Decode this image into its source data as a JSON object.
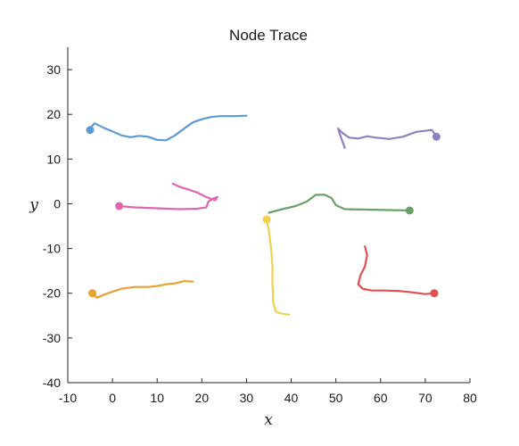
{
  "chart_data": {
    "type": "line",
    "title": "Node Trace",
    "xlabel": "x",
    "ylabel": "y",
    "xlim": [
      -10,
      80
    ],
    "ylim": [
      -40,
      35
    ],
    "xticks": [
      -10,
      0,
      10,
      20,
      30,
      40,
      50,
      60,
      70,
      80
    ],
    "yticks": [
      -40,
      -30,
      -20,
      -10,
      0,
      10,
      20,
      30
    ],
    "grid": false,
    "series": [
      {
        "color": "#5b9bd5",
        "start": [
          -5.0,
          16.5
        ],
        "points": [
          [
            -5.0,
            16.5
          ],
          [
            -4.5,
            17.5
          ],
          [
            -4.0,
            18.0
          ],
          [
            -2,
            17.0
          ],
          [
            0,
            16.2
          ],
          [
            2,
            15.3
          ],
          [
            4,
            14.9
          ],
          [
            6,
            15.2
          ],
          [
            8,
            15.0
          ],
          [
            10,
            14.3
          ],
          [
            12,
            14.2
          ],
          [
            14,
            15.3
          ],
          [
            16,
            16.8
          ],
          [
            18,
            18.2
          ],
          [
            20,
            18.9
          ],
          [
            22,
            19.4
          ],
          [
            24,
            19.6
          ],
          [
            27,
            19.6
          ],
          [
            30,
            19.7
          ]
        ]
      },
      {
        "color": "#9080c0",
        "start": [
          72.5,
          15.0
        ],
        "points": [
          [
            72.5,
            15.0
          ],
          [
            71.5,
            16.5
          ],
          [
            68,
            16.1
          ],
          [
            65,
            15.0
          ],
          [
            62,
            14.5
          ],
          [
            59,
            14.8
          ],
          [
            57,
            15.1
          ],
          [
            55,
            14.6
          ],
          [
            53,
            14.8
          ],
          [
            51.5,
            15.8
          ],
          [
            50.5,
            16.8
          ],
          [
            51,
            15.2
          ],
          [
            52,
            12.5
          ]
        ]
      },
      {
        "color": "#e066b0",
        "start": [
          1.5,
          -0.5
        ],
        "points": [
          [
            1.5,
            -0.5
          ],
          [
            5,
            -0.8
          ],
          [
            10,
            -1.0
          ],
          [
            15,
            -1.2
          ],
          [
            19,
            -1.1
          ],
          [
            21,
            -0.8
          ],
          [
            21.5,
            0.5
          ],
          [
            22.5,
            1.2
          ],
          [
            23.5,
            1.5
          ],
          [
            23.0,
            0.8
          ],
          [
            21,
            1.5
          ],
          [
            19,
            2.5
          ],
          [
            17,
            3.2
          ],
          [
            15,
            3.8
          ],
          [
            13.5,
            4.5
          ]
        ]
      },
      {
        "color": "#6aa06a",
        "start": [
          66.5,
          -1.5
        ],
        "points": [
          [
            66.5,
            -1.5
          ],
          [
            62,
            -1.4
          ],
          [
            57,
            -1.3
          ],
          [
            52,
            -1.2
          ],
          [
            50,
            -0.3
          ],
          [
            49,
            1.3
          ],
          [
            47.5,
            2.0
          ],
          [
            45.5,
            2.0
          ],
          [
            43.5,
            0.5
          ],
          [
            41,
            -0.5
          ],
          [
            38,
            -1.2
          ],
          [
            35,
            -2.0
          ]
        ]
      },
      {
        "color": "#f0d050",
        "start": [
          34.5,
          -3.5
        ],
        "points": [
          [
            34.5,
            -3.5
          ],
          [
            35,
            -6
          ],
          [
            35.5,
            -10
          ],
          [
            35.8,
            -14
          ],
          [
            35.8,
            -18
          ],
          [
            36,
            -22
          ],
          [
            36.5,
            -24
          ],
          [
            37.5,
            -24.5
          ],
          [
            39.5,
            -24.8
          ]
        ]
      },
      {
        "color": "#e8a030",
        "start": [
          -4.5,
          -20.0
        ],
        "points": [
          [
            -4.5,
            -20.0
          ],
          [
            -4.0,
            -20.6
          ],
          [
            -3.5,
            -21.0
          ],
          [
            -1,
            -20.0
          ],
          [
            2,
            -19.0
          ],
          [
            5,
            -18.6
          ],
          [
            8,
            -18.6
          ],
          [
            10,
            -18.4
          ],
          [
            12,
            -18.0
          ],
          [
            14,
            -17.8
          ],
          [
            16,
            -17.3
          ],
          [
            18,
            -17.4
          ]
        ]
      },
      {
        "color": "#e05050",
        "start": [
          72.0,
          -20.0
        ],
        "points": [
          [
            72.0,
            -20.0
          ],
          [
            70,
            -20.2
          ],
          [
            67,
            -19.8
          ],
          [
            64,
            -19.5
          ],
          [
            61,
            -19.4
          ],
          [
            58,
            -19.4
          ],
          [
            56,
            -19.0
          ],
          [
            55,
            -18.0
          ],
          [
            55.5,
            -16
          ],
          [
            56.5,
            -14
          ],
          [
            57,
            -11.5
          ],
          [
            56.5,
            -9.5
          ]
        ]
      }
    ]
  }
}
